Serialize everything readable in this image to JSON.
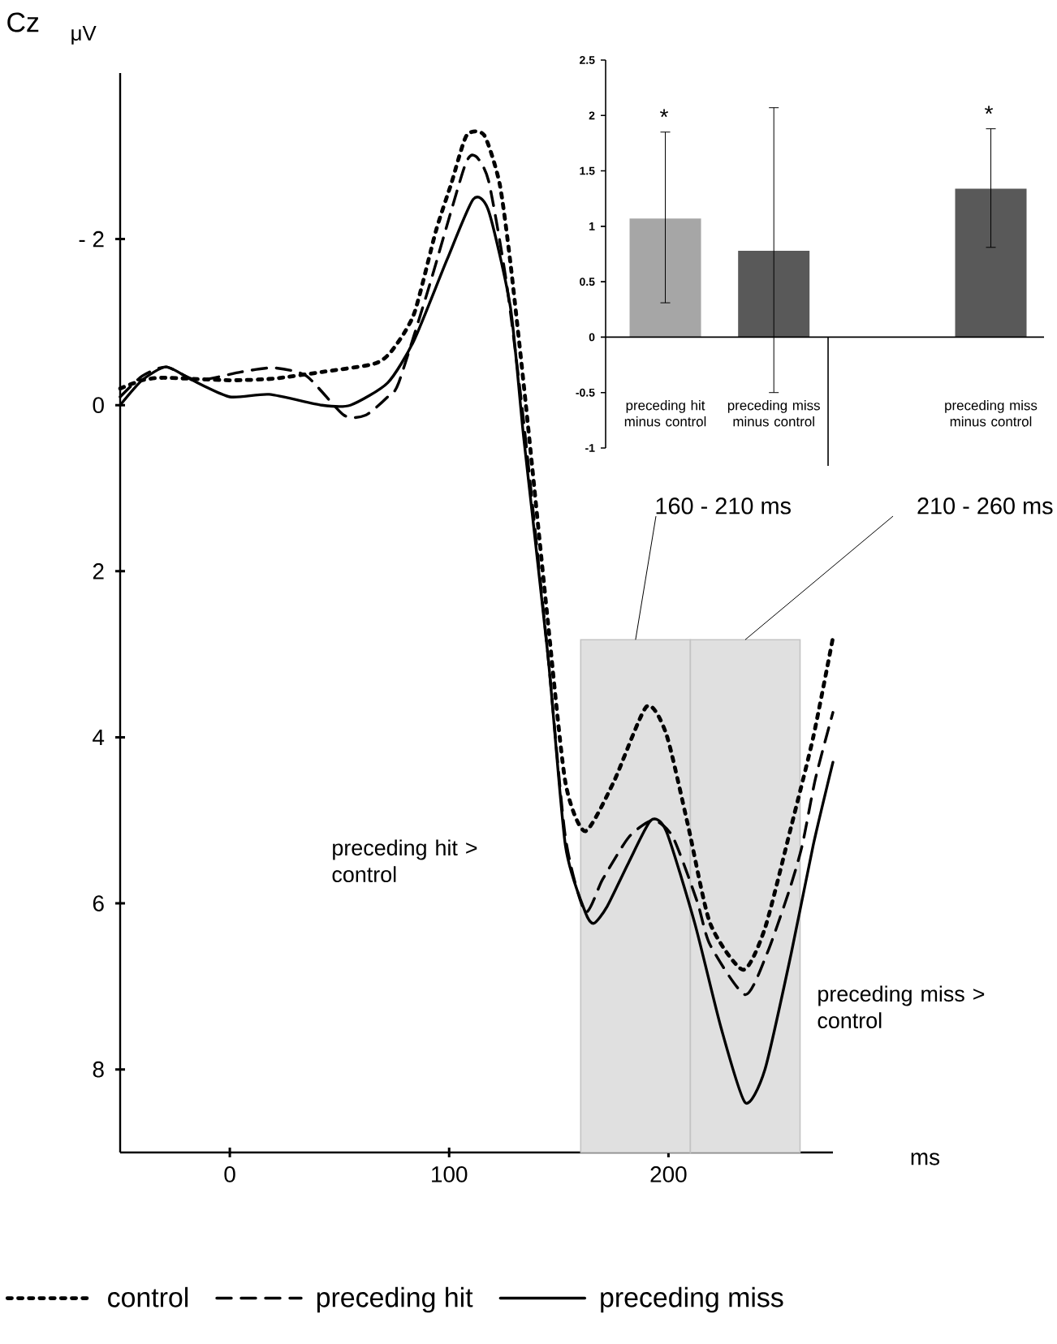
{
  "chart_data": [
    {
      "type": "line",
      "title": "Cz",
      "ylabel": "μV",
      "xlabel": "ms",
      "annotations": [
        "preceding hit > control",
        "preceding miss > control"
      ],
      "xlim": [
        -50,
        275
      ],
      "ylim": [
        9,
        -4
      ],
      "xticks": [
        0,
        100,
        200
      ],
      "yticks": [
        {
          "value": -2,
          "label": "- 2"
        },
        0,
        2,
        4,
        6,
        8
      ],
      "legend": "bottom",
      "bands": [
        {
          "axis": "x",
          "from": 160,
          "to": 210,
          "label": "160 - 210 ms",
          "color": "#e0e0e0"
        },
        {
          "axis": "x",
          "from": 210,
          "to": 260,
          "label": "210 - 260 ms",
          "color": "#e0e0e0"
        }
      ],
      "series": [
        {
          "name": "control",
          "color": "#000000",
          "line_style": "dotted",
          "x": [
            -50,
            -40,
            -30,
            0,
            20,
            42,
            66,
            74,
            84,
            94,
            101,
            108,
            116,
            123,
            128,
            135,
            145,
            153,
            162,
            175,
            190,
            199,
            209,
            219,
            234,
            244,
            256,
            266,
            275
          ],
          "values": [
            -0.2,
            -0.3,
            -0.33,
            -0.3,
            -0.32,
            -0.4,
            -0.5,
            -0.66,
            -1.1,
            -2.1,
            -2.67,
            -3.25,
            -3.25,
            -2.67,
            -1.7,
            0,
            2.6,
            4.54,
            5.13,
            4.54,
            3.63,
            3.96,
            5.07,
            6.24,
            6.8,
            6.3,
            5.07,
            4.0,
            2.8
          ]
        },
        {
          "name": "preceding hit",
          "color": "#000000",
          "line_style": "dashed",
          "x": [
            -50,
            -40,
            -29,
            -15,
            5,
            20,
            35,
            52,
            62,
            72,
            77,
            91,
            107,
            112,
            118,
            126,
            134,
            145,
            153,
            162,
            170,
            182,
            193,
            202,
            213,
            219,
            235,
            245,
            255,
            261,
            267,
            275
          ],
          "values": [
            -0.1,
            -0.35,
            -0.46,
            -0.3,
            -0.4,
            -0.45,
            -0.35,
            0.12,
            0.12,
            -0.1,
            -0.27,
            -1.44,
            -2.87,
            -3.0,
            -2.7,
            -1.5,
            0.2,
            3.0,
            5.2,
            6.1,
            5.71,
            5.2,
            5.0,
            5.2,
            5.97,
            6.5,
            7.1,
            6.6,
            5.85,
            5.3,
            4.5,
            3.7
          ]
        },
        {
          "name": "preceding miss",
          "color": "#000000",
          "line_style": "solid",
          "x": [
            -50,
            -40,
            -29,
            -17,
            0,
            18,
            42,
            55,
            72,
            84,
            99,
            111,
            118,
            128,
            134,
            145,
            153,
            162,
            166,
            172,
            182,
            192,
            199,
            212,
            224,
            235,
            244,
            256,
            266,
            275
          ],
          "values": [
            0,
            -0.3,
            -0.46,
            -0.3,
            -0.1,
            -0.13,
            0,
            0,
            -0.27,
            -0.78,
            -1.75,
            -2.48,
            -2.34,
            -1.17,
            0.39,
            3.0,
            5.3,
            6.1,
            6.24,
            6.04,
            5.5,
            5.0,
            5.13,
            6.24,
            7.5,
            8.4,
            8.0,
            6.6,
            5.3,
            4.3
          ]
        }
      ]
    },
    {
      "type": "bar",
      "categories": [
        "preceding hit minus control",
        "preceding miss minus control",
        null,
        "preceding miss minus control"
      ],
      "values": [
        1.07,
        0.78,
        null,
        1.34
      ],
      "colors": [
        "#a6a6a6",
        "#595959",
        null,
        "#595959"
      ],
      "errors": [
        [
          0.31,
          1.85
        ],
        [
          -0.5,
          2.07
        ],
        null,
        [
          0.81,
          1.88
        ]
      ],
      "ylim": [
        -1,
        2.5
      ],
      "yticks": [
        -1,
        -0.5,
        0,
        0.5,
        1,
        1.5,
        2,
        2.5
      ],
      "annotations": [
        "*",
        "*"
      ]
    }
  ]
}
